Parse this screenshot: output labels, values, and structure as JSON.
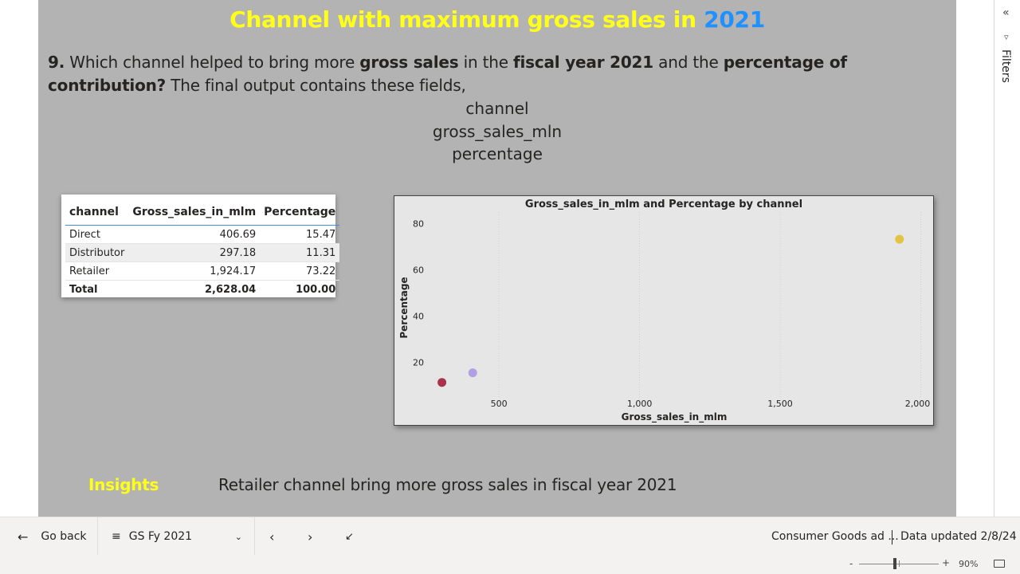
{
  "page": {
    "title_part1": "Channel with maximum gross sales in ",
    "title_part2": "2021",
    "question": {
      "num": "9.",
      "t1": " Which channel helped to bring more ",
      "b1": "gross sales",
      "t2": " in the ",
      "b2": "fiscal year 2021",
      "t3": " and the ",
      "b3": "percentage of contribution?",
      "t4": " The final output contains these fields,"
    },
    "fields": [
      "channel",
      "gross_sales_mln",
      "percentage"
    ],
    "insights_label": "Insights",
    "insights_text": "Retailer channel bring more gross sales in fiscal year 2021"
  },
  "table": {
    "headers": [
      "channel",
      "Gross_sales_in_mlm",
      "Percentage"
    ],
    "rows": [
      [
        "Direct",
        "406.69",
        "15.47"
      ],
      [
        "Distributor",
        "297.18",
        "11.31"
      ],
      [
        "Retailer",
        "1,924.17",
        "73.22"
      ]
    ],
    "total": [
      "Total",
      "2,628.04",
      "100.00"
    ]
  },
  "chart_data": {
    "type": "scatter",
    "title": "Gross_sales_in_mlm and Percentage by channel",
    "xlabel": "Gross_sales_in_mlm",
    "ylabel": "Percentage",
    "xlim": [
      270,
      2010
    ],
    "ylim": [
      5,
      85
    ],
    "xticks": [
      500,
      1000,
      1500,
      2000
    ],
    "xtick_labels": [
      "500",
      "1,000",
      "1,500",
      "2,000"
    ],
    "yticks": [
      20,
      40,
      60,
      80
    ],
    "ytick_labels": [
      "20",
      "40",
      "60",
      "80"
    ],
    "grid": true,
    "points": [
      {
        "category": "Direct",
        "x": 406.69,
        "y": 15.47,
        "color": "#b1a0e3"
      },
      {
        "category": "Distributor",
        "x": 297.18,
        "y": 11.31,
        "color": "#a8334a"
      },
      {
        "category": "Retailer",
        "x": 1924.17,
        "y": 73.22,
        "color": "#e3c341"
      }
    ]
  },
  "filters": {
    "label": "Filters",
    "collapse_icon": "double-chevron-left-icon"
  },
  "bottombar": {
    "go_back": "Go back",
    "page_name": "GS Fy 2021",
    "report_name": "Consumer Goods ad ...",
    "data_updated": "Data updated 2/8/24"
  },
  "statusbar": {
    "zoom_minus": "-",
    "zoom_plus": "+",
    "zoom_level": "90%"
  }
}
